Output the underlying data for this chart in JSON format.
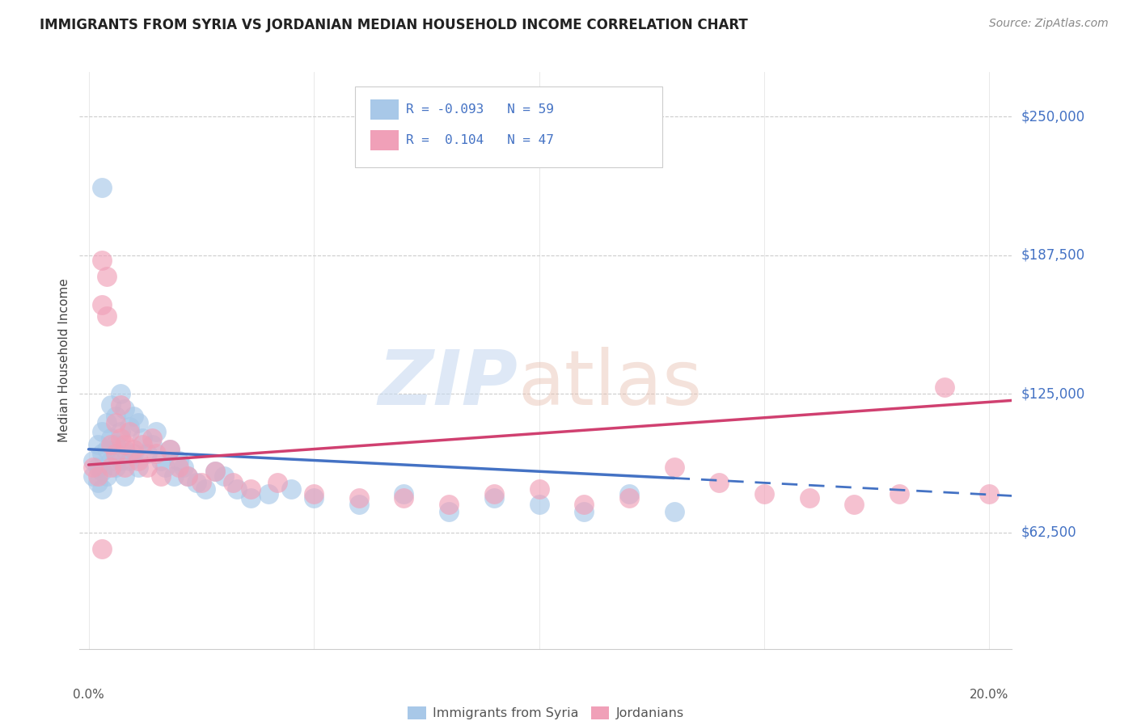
{
  "title": "IMMIGRANTS FROM SYRIA VS JORDANIAN MEDIAN HOUSEHOLD INCOME CORRELATION CHART",
  "source": "Source: ZipAtlas.com",
  "ylabel": "Median Household Income",
  "ytick_labels": [
    "$62,500",
    "$125,000",
    "$187,500",
    "$250,000"
  ],
  "ytick_values": [
    62500,
    125000,
    187500,
    250000
  ],
  "ylim": [
    10000,
    270000
  ],
  "xlim": [
    -0.002,
    0.205
  ],
  "blue_color": "#a8c8e8",
  "pink_color": "#f0a0b8",
  "blue_line_color": "#4472c4",
  "pink_line_color": "#d04070",
  "text_color": "#4472c4",
  "grid_color": "#cccccc",
  "blue_scatter_x": [
    0.001,
    0.001,
    0.002,
    0.002,
    0.002,
    0.003,
    0.003,
    0.003,
    0.003,
    0.004,
    0.004,
    0.004,
    0.005,
    0.005,
    0.005,
    0.006,
    0.006,
    0.006,
    0.007,
    0.007,
    0.007,
    0.008,
    0.008,
    0.008,
    0.009,
    0.009,
    0.01,
    0.01,
    0.011,
    0.011,
    0.012,
    0.013,
    0.014,
    0.015,
    0.016,
    0.017,
    0.018,
    0.019,
    0.02,
    0.021,
    0.022,
    0.024,
    0.026,
    0.028,
    0.03,
    0.033,
    0.036,
    0.04,
    0.045,
    0.05,
    0.06,
    0.07,
    0.08,
    0.09,
    0.1,
    0.11,
    0.12,
    0.13,
    0.003
  ],
  "blue_scatter_y": [
    95000,
    88000,
    102000,
    92000,
    85000,
    108000,
    98000,
    90000,
    82000,
    112000,
    100000,
    88000,
    120000,
    105000,
    95000,
    115000,
    102000,
    92000,
    125000,
    108000,
    95000,
    118000,
    100000,
    88000,
    110000,
    95000,
    115000,
    98000,
    112000,
    92000,
    105000,
    98000,
    102000,
    108000,
    95000,
    92000,
    100000,
    88000,
    95000,
    92000,
    88000,
    85000,
    82000,
    90000,
    88000,
    82000,
    78000,
    80000,
    82000,
    78000,
    75000,
    80000,
    72000,
    78000,
    75000,
    72000,
    80000,
    72000,
    218000
  ],
  "pink_scatter_x": [
    0.001,
    0.002,
    0.003,
    0.003,
    0.004,
    0.004,
    0.005,
    0.005,
    0.006,
    0.006,
    0.007,
    0.007,
    0.008,
    0.008,
    0.009,
    0.01,
    0.011,
    0.012,
    0.013,
    0.014,
    0.015,
    0.016,
    0.018,
    0.02,
    0.022,
    0.025,
    0.028,
    0.032,
    0.036,
    0.042,
    0.05,
    0.06,
    0.07,
    0.08,
    0.09,
    0.1,
    0.11,
    0.12,
    0.13,
    0.14,
    0.15,
    0.16,
    0.17,
    0.18,
    0.19,
    0.2,
    0.003
  ],
  "pink_scatter_y": [
    92000,
    88000,
    185000,
    165000,
    178000,
    160000,
    102000,
    92000,
    112000,
    98000,
    120000,
    105000,
    102000,
    92000,
    108000,
    100000,
    95000,
    102000,
    92000,
    105000,
    98000,
    88000,
    100000,
    92000,
    88000,
    85000,
    90000,
    85000,
    82000,
    85000,
    80000,
    78000,
    78000,
    75000,
    80000,
    82000,
    75000,
    78000,
    92000,
    85000,
    80000,
    78000,
    75000,
    80000,
    128000,
    80000,
    55000
  ],
  "blue_line_x0": 0.0,
  "blue_line_y0": 100000,
  "blue_line_x1_solid": 0.13,
  "blue_line_y1_solid": 87000,
  "blue_line_x1_dash": 0.205,
  "blue_line_y1_dash": 79000,
  "pink_line_x0": 0.0,
  "pink_line_y0": 93000,
  "pink_line_x1": 0.205,
  "pink_line_y1": 122000
}
